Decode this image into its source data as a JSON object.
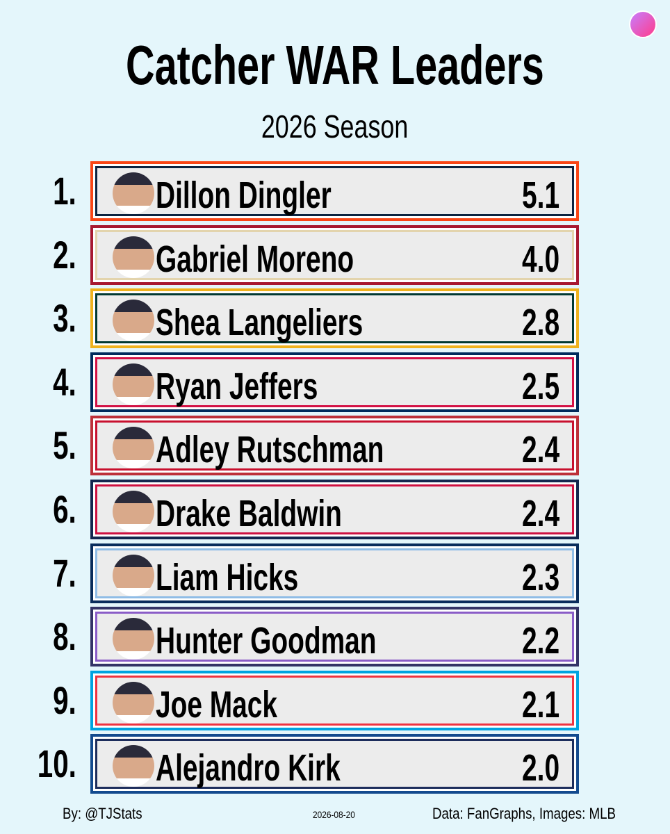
{
  "header": {
    "title": "Catcher WAR Leaders",
    "subtitle": "2026 Season"
  },
  "rows": [
    {
      "rank": "1.",
      "name": "Dillon Dingler",
      "war": "5.1",
      "colors": [
        "#fa4616",
        "#0c2340"
      ]
    },
    {
      "rank": "2.",
      "name": "Gabriel Moreno",
      "war": "4.0",
      "colors": [
        "#a71930",
        "#e3d4ad"
      ]
    },
    {
      "rank": "3.",
      "name": "Shea Langeliers",
      "war": "2.8",
      "colors": [
        "#efb21e",
        "#003831"
      ]
    },
    {
      "rank": "4.",
      "name": "Ryan Jeffers",
      "war": "2.5",
      "colors": [
        "#002b5c",
        "#d31145"
      ]
    },
    {
      "rank": "5.",
      "name": "Adley Rutschman",
      "war": "2.4",
      "colors": [
        "#bd3039",
        "#c8102e"
      ]
    },
    {
      "rank": "6.",
      "name": "Drake Baldwin",
      "war": "2.4",
      "colors": [
        "#13274f",
        "#ce1141"
      ]
    },
    {
      "rank": "7.",
      "name": "Liam Hicks",
      "war": "2.3",
      "colors": [
        "#092c5c",
        "#8fbce6"
      ]
    },
    {
      "rank": "8.",
      "name": "Hunter Goodman",
      "war": "2.2",
      "colors": [
        "#333366",
        "#8a5cc7"
      ]
    },
    {
      "rank": "9.",
      "name": "Joe Mack",
      "war": "2.1",
      "colors": [
        "#00a3e0",
        "#ef3340"
      ]
    },
    {
      "rank": "10.",
      "name": "Alejandro Kirk",
      "war": "2.0",
      "colors": [
        "#134a8e",
        "#1d2d5c"
      ]
    }
  ],
  "footer": {
    "by": "By: @TJStats",
    "date": "2026-08-20",
    "source": "Data: FanGraphs, Images: MLB"
  }
}
